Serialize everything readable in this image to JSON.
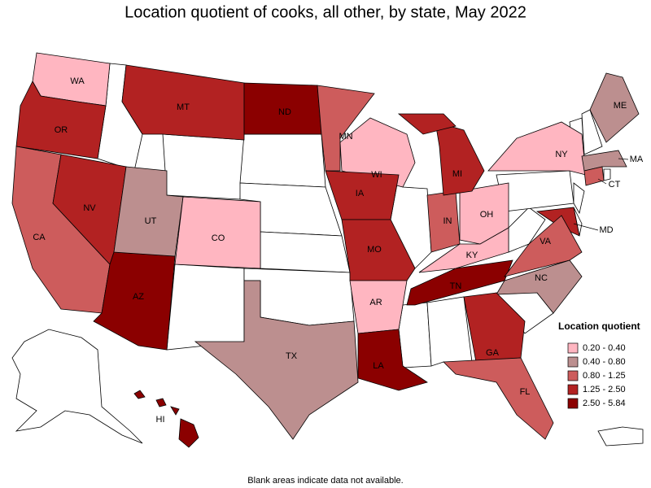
{
  "title": "Location quotient of cooks, all other, by state, May 2022",
  "legend": {
    "title": "Location quotient",
    "items": [
      {
        "label": "0.20 - 0.40",
        "color": "#ffb6c1"
      },
      {
        "label": "0.40 - 0.80",
        "color": "#bc8f8f"
      },
      {
        "label": "0.80 - 1.25",
        "color": "#cd5c5c"
      },
      {
        "label": "1.25 - 2.50",
        "color": "#b22222"
      },
      {
        "label": "2.50 - 5.84",
        "color": "#8b0000"
      }
    ]
  },
  "states": [
    {
      "label": "WA",
      "color": "#ffb6c1"
    },
    {
      "label": "OR",
      "color": "#b22222"
    },
    {
      "label": "CA",
      "color": "#cd5c5c"
    },
    {
      "label": "NV",
      "color": "#b22222"
    },
    {
      "label": "AZ",
      "color": "#8b0000"
    },
    {
      "label": "UT",
      "color": "#bc8f8f"
    },
    {
      "label": "CO",
      "color": "#ffb6c1"
    },
    {
      "label": "MT",
      "color": "#b22222"
    },
    {
      "label": "ND",
      "color": "#8b0000"
    },
    {
      "label": "MN",
      "color": "#cd5c5c"
    },
    {
      "label": "WI",
      "color": "#ffb6c1"
    },
    {
      "label": "IA",
      "color": "#b22222"
    },
    {
      "label": "MO",
      "color": "#b22222"
    },
    {
      "label": "AR",
      "color": "#ffb6c1"
    },
    {
      "label": "LA",
      "color": "#8b0000"
    },
    {
      "label": "TX",
      "color": "#bc8f8f"
    },
    {
      "label": "TN",
      "color": "#8b0000"
    },
    {
      "label": "KY",
      "color": "#ffb6c1"
    },
    {
      "label": "IN",
      "color": "#cd5c5c"
    },
    {
      "label": "OH",
      "color": "#ffb6c1"
    },
    {
      "label": "MI",
      "color": "#b22222"
    },
    {
      "label": "NY",
      "color": "#ffb6c1"
    },
    {
      "label": "ME",
      "color": "#bc8f8f"
    },
    {
      "label": "MA",
      "color": "#bc8f8f"
    },
    {
      "label": "CT",
      "color": "#cd5c5c"
    },
    {
      "label": "MD",
      "color": "#b22222"
    },
    {
      "label": "VA",
      "color": "#cd5c5c"
    },
    {
      "label": "NC",
      "color": "#bc8f8f"
    },
    {
      "label": "GA",
      "color": "#b22222"
    },
    {
      "label": "FL",
      "color": "#cd5c5c"
    },
    {
      "label": "HI",
      "color": "#8b0000"
    }
  ],
  "note": "Blank areas indicate data not available."
}
